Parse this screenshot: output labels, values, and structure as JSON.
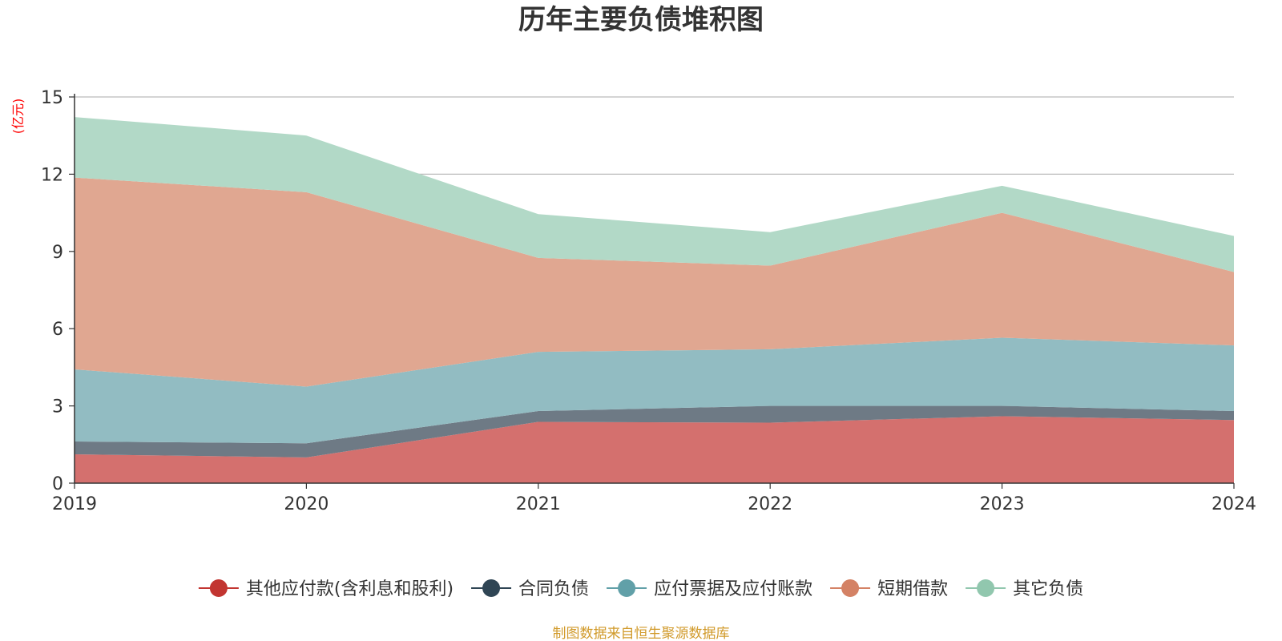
{
  "chart_data": {
    "type": "area",
    "stacked": true,
    "title": "历年主要负债堆积图",
    "ylabel": "(亿元)",
    "xlabel": "",
    "x": [
      "2019",
      "2020",
      "2021",
      "2022",
      "2023",
      "2024"
    ],
    "ylim": [
      0,
      15
    ],
    "yticks": [
      "0",
      "3",
      "6",
      "9",
      "12",
      "15"
    ],
    "grid": true,
    "legend_position": "bottom",
    "series": [
      {
        "name": "其他应付款(含利息和股利)",
        "color": "#c23531",
        "fill": "#d4706e",
        "values": [
          1.12,
          1.0,
          2.38,
          2.35,
          2.6,
          2.45
        ]
      },
      {
        "name": "合同负债",
        "color": "#2f4554",
        "fill": "#6e7a85",
        "values": [
          0.5,
          0.55,
          0.42,
          0.65,
          0.4,
          0.35
        ]
      },
      {
        "name": "应付票据及应付账款",
        "color": "#61a0a8",
        "fill": "#92bcc2",
        "values": [
          2.8,
          2.2,
          2.3,
          2.2,
          2.65,
          2.55
        ]
      },
      {
        "name": "短期借款",
        "color": "#d48265",
        "fill": "#e0a791",
        "values": [
          7.45,
          7.55,
          3.65,
          3.25,
          4.85,
          2.85
        ]
      },
      {
        "name": "其它负债",
        "color": "#91c7ae",
        "fill": "#b2d9c7",
        "values": [
          2.35,
          2.2,
          1.7,
          1.3,
          1.05,
          1.4
        ]
      }
    ],
    "source_note": "制图数据来自恒生聚源数据库",
    "unit_color": "#ff0000",
    "source_color": "#d19a2a"
  }
}
